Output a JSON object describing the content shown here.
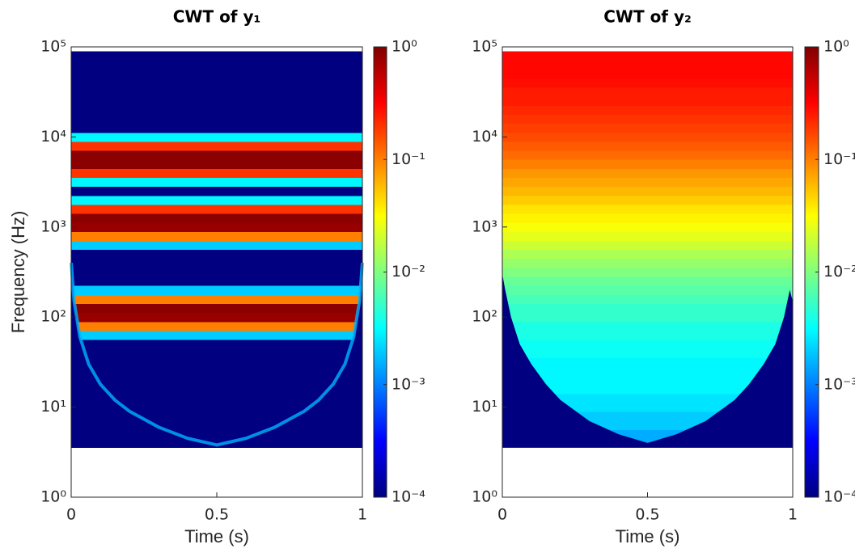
{
  "chart_data": [
    {
      "type": "heatmap",
      "title": "CWT of y₁",
      "xlabel": "Time (s)",
      "ylabel": "Frequency (Hz)",
      "colormap": "jet",
      "log_y": true,
      "log_color": true,
      "coi_line": true,
      "xlim": [
        0,
        1
      ],
      "xticks": [
        0,
        0.5,
        1
      ],
      "ylim": [
        1,
        100000
      ],
      "yticks": [
        {
          "value": 1,
          "label": "10⁰"
        },
        {
          "value": 10,
          "label": "10¹"
        },
        {
          "value": 100,
          "label": "10²"
        },
        {
          "value": 1000,
          "label": "10³"
        },
        {
          "value": 10000,
          "label": "10⁴"
        },
        {
          "value": 100000,
          "label": "10⁵"
        }
      ],
      "clim": [
        0.0001,
        1
      ],
      "cticks": [
        {
          "value": 0.0001,
          "label": "10⁻⁴"
        },
        {
          "value": 0.001,
          "label": "10⁻³"
        },
        {
          "value": 0.01,
          "label": "10⁻²"
        },
        {
          "value": 0.1,
          "label": "10⁻¹"
        },
        {
          "value": 1,
          "label": "10⁰"
        }
      ],
      "y": [
        3.98,
        5.01,
        6.31,
        7.94,
        10,
        12.6,
        15.8,
        20,
        25.1,
        31.6,
        39.8,
        50.1,
        63.1,
        79.4,
        100,
        126,
        158,
        200,
        251,
        316,
        398,
        501,
        631,
        794,
        1000,
        1259,
        1585,
        1995,
        2512,
        3162,
        3981,
        5012,
        6310,
        7943,
        10000,
        12589,
        15849,
        19953,
        25119,
        31623,
        39811,
        50119,
        63096,
        79433
      ],
      "values": [
        0.0001,
        0.0001,
        0.0001,
        0.0001,
        0.0001,
        0.0001,
        0.0001,
        0.0001,
        0.0001,
        0.0001,
        0.0001,
        0.0001,
        0.002,
        0.1,
        0.8,
        0.9,
        0.1,
        0.002,
        0.0001,
        0.0001,
        0.0001,
        0.0001,
        0.002,
        0.1,
        0.8,
        0.9,
        0.2,
        0.003,
        0.0001,
        0.003,
        0.2,
        0.9,
        0.9,
        0.2,
        0.003,
        0.0001,
        0.0001,
        0.0001,
        0.0001,
        0.0001,
        0.0001,
        0.0001,
        0.0001,
        0.0001
      ],
      "coi_x": [
        0,
        0.01,
        0.03,
        0.06,
        0.1,
        0.15,
        0.2,
        0.3,
        0.4,
        0.5,
        0.6,
        0.7,
        0.8,
        0.85,
        0.9,
        0.94,
        0.97,
        0.99,
        1
      ],
      "coi_y": [
        400,
        150,
        60,
        30,
        18,
        12,
        9,
        6,
        4.5,
        3.8,
        4.5,
        6,
        9,
        12,
        18,
        30,
        60,
        150,
        400
      ]
    },
    {
      "type": "heatmap",
      "title": "CWT of y₂",
      "xlabel": "Time (s)",
      "colormap": "jet",
      "log_y": true,
      "log_color": true,
      "coi_line": false,
      "xlim": [
        0,
        1
      ],
      "xticks": [
        0,
        0.5,
        1
      ],
      "ylim": [
        1,
        100000
      ],
      "yticks": [
        {
          "value": 1,
          "label": "10⁰"
        },
        {
          "value": 10,
          "label": "10¹"
        },
        {
          "value": 100,
          "label": "10²"
        },
        {
          "value": 1000,
          "label": "10³"
        },
        {
          "value": 10000,
          "label": "10⁴"
        },
        {
          "value": 100000,
          "label": "10⁵"
        }
      ],
      "clim": [
        0.0001,
        1
      ],
      "cticks": [
        {
          "value": 0.0001,
          "label": "10⁻⁴"
        },
        {
          "value": 0.001,
          "label": "10⁻³"
        },
        {
          "value": 0.01,
          "label": "10⁻²"
        },
        {
          "value": 0.1,
          "label": "10⁻¹"
        },
        {
          "value": 1,
          "label": "10⁰"
        }
      ],
      "y": [
        3.98,
        5.01,
        6.31,
        7.94,
        10,
        12.6,
        15.8,
        20,
        25.1,
        31.6,
        39.8,
        50.1,
        63.1,
        79.4,
        100,
        126,
        158,
        200,
        251,
        316,
        398,
        501,
        631,
        794,
        1000,
        1259,
        1585,
        1995,
        2512,
        3162,
        3981,
        5012,
        6310,
        7943,
        10000,
        12589,
        15849,
        19953,
        25119,
        31623,
        39811,
        50119,
        63096,
        79433
      ],
      "values": [
        0.0015,
        0.0015,
        0.002,
        0.002,
        0.0025,
        0.0025,
        0.003,
        0.003,
        0.003,
        0.003,
        0.0035,
        0.0035,
        0.004,
        0.004,
        0.005,
        0.005,
        0.006,
        0.007,
        0.008,
        0.01,
        0.012,
        0.015,
        0.02,
        0.025,
        0.03,
        0.035,
        0.04,
        0.05,
        0.06,
        0.07,
        0.08,
        0.1,
        0.12,
        0.14,
        0.16,
        0.18,
        0.2,
        0.22,
        0.25,
        0.25,
        0.28,
        0.3,
        0.3,
        0.3
      ],
      "coi_x": [
        0,
        0.01,
        0.03,
        0.06,
        0.1,
        0.15,
        0.2,
        0.3,
        0.4,
        0.5,
        0.6,
        0.7,
        0.8,
        0.85,
        0.9,
        0.94,
        0.97,
        0.99,
        1
      ],
      "coi_y": [
        300,
        200,
        100,
        50,
        30,
        18,
        12,
        7,
        5,
        4,
        5,
        7,
        12,
        18,
        30,
        50,
        100,
        200,
        150
      ]
    }
  ]
}
